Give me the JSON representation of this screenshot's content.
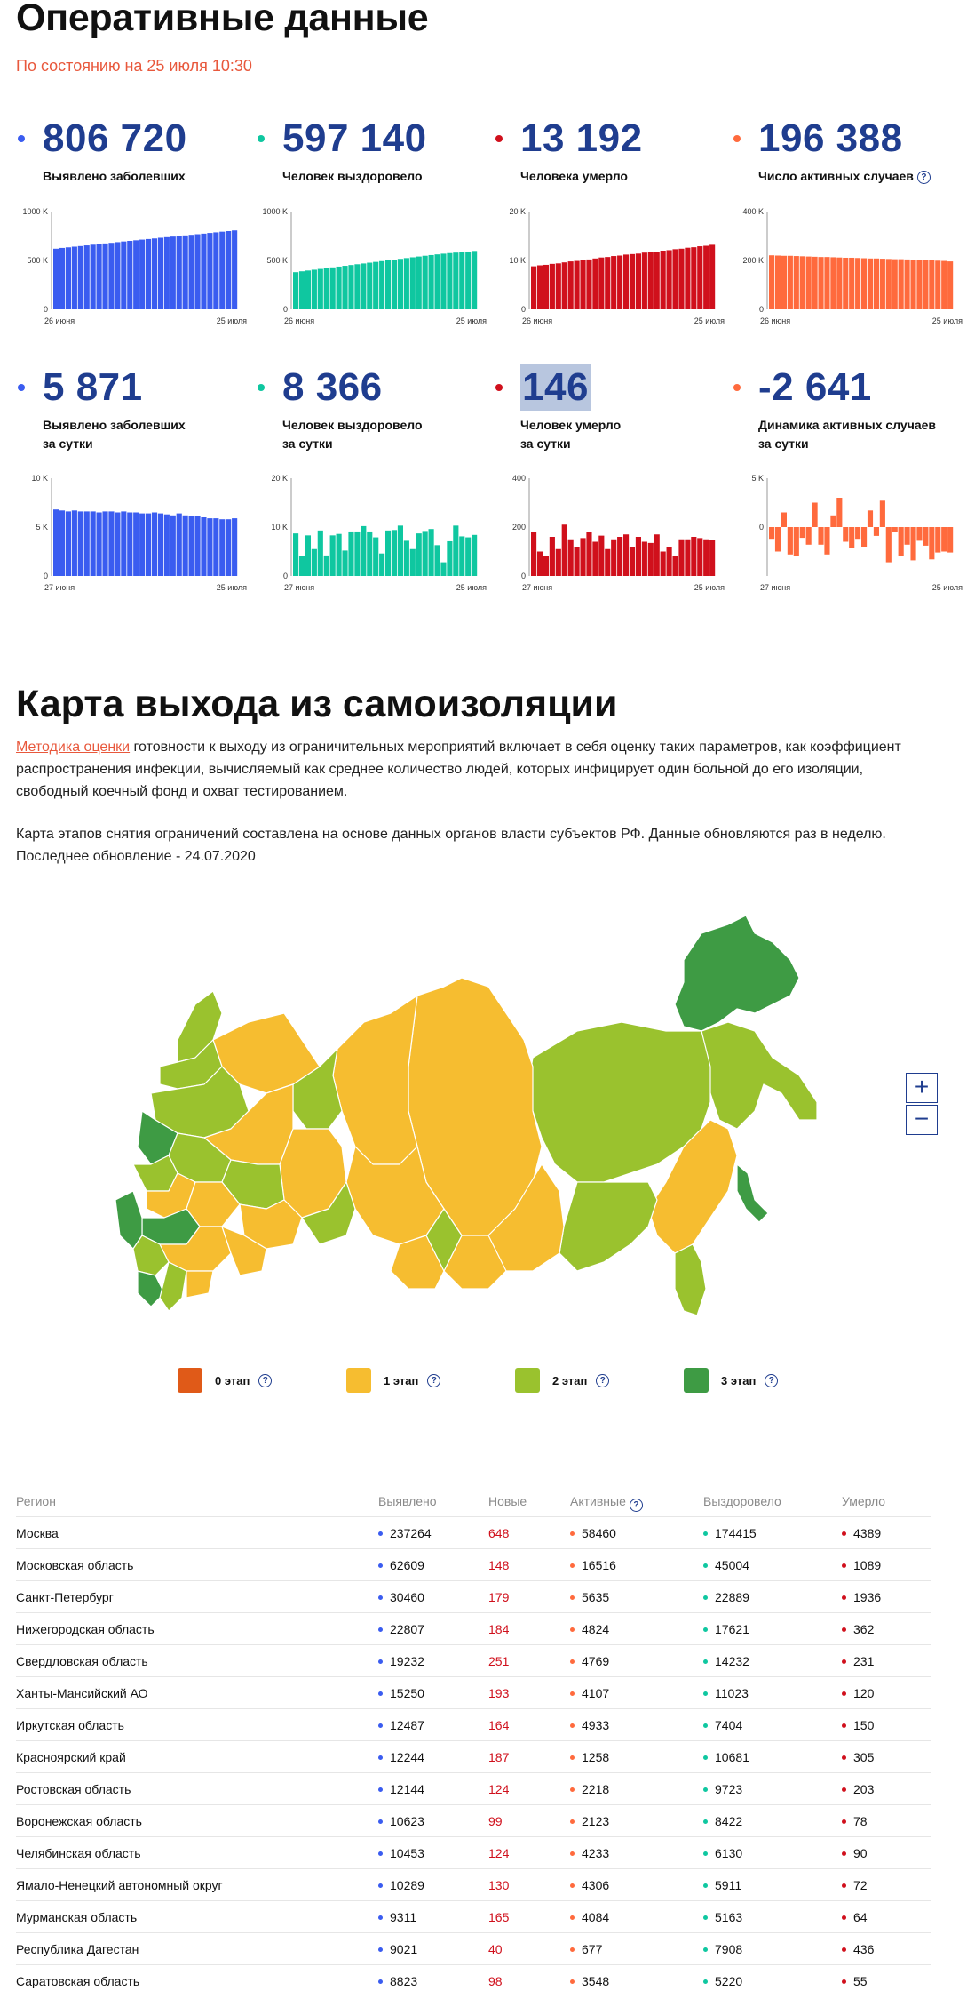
{
  "header": {
    "title": "Оперативные данные",
    "status_date": "По состоянию на 25 июля 10:30"
  },
  "colors": {
    "infected": "#3a5cf0",
    "recovered": "#0fc7a0",
    "deaths": "#d0101c",
    "active": "#ff6a3d",
    "stage0": "#e05a18",
    "stage1": "#f6bd30",
    "stage2": "#9ac22e",
    "stage3": "#3e9b44"
  },
  "stats": [
    {
      "value": "806 720",
      "label": "Выявлено заболевших",
      "color": "infected",
      "chart": {
        "type": "bar",
        "ymax": 1000,
        "ticks": [
          "1000 K",
          "500 K",
          "0"
        ],
        "ticks_v": [
          1000,
          500,
          0
        ],
        "x_start": "26 июня",
        "x_end": "25 июля",
        "values": [
          620,
          628,
          634,
          641,
          647,
          654,
          661,
          667,
          674,
          680,
          687,
          694,
          700,
          706,
          713,
          719,
          725,
          732,
          738,
          744,
          750,
          756,
          762,
          768,
          774,
          781,
          787,
          794,
          800,
          807
        ]
      }
    },
    {
      "value": "597 140",
      "label": "Человек выздоровело",
      "color": "recovered",
      "chart": {
        "type": "bar",
        "ymax": 1000,
        "ticks": [
          "1000 K",
          "500 K",
          "0"
        ],
        "ticks_v": [
          1000,
          500,
          0
        ],
        "x_start": "26 июня",
        "x_end": "25 июля",
        "values": [
          380,
          389,
          397,
          405,
          413,
          421,
          429,
          437,
          445,
          453,
          461,
          469,
          477,
          485,
          493,
          500,
          508,
          516,
          524,
          532,
          540,
          548,
          555,
          562,
          569,
          575,
          580,
          585,
          591,
          597
        ]
      }
    },
    {
      "value": "13 192",
      "label": "Человека умерло",
      "color": "deaths",
      "chart": {
        "type": "bar",
        "ymax": 20,
        "ticks": [
          "20 K",
          "10 K",
          "0"
        ],
        "ticks_v": [
          20,
          10,
          0
        ],
        "x_start": "26 июня",
        "x_end": "25 июля",
        "values": [
          8.8,
          9,
          9.1,
          9.3,
          9.4,
          9.6,
          9.8,
          9.9,
          10.1,
          10.2,
          10.4,
          10.6,
          10.7,
          10.9,
          11,
          11.2,
          11.3,
          11.4,
          11.6,
          11.7,
          11.8,
          12,
          12.1,
          12.3,
          12.4,
          12.6,
          12.7,
          12.9,
          13,
          13.2
        ]
      }
    },
    {
      "value": "196 388",
      "label": "Число активных случаев",
      "help": true,
      "color": "active",
      "chart": {
        "type": "bar",
        "ymax": 400,
        "ticks": [
          "400 K",
          "200 K",
          "0"
        ],
        "ticks_v": [
          400,
          200,
          0
        ],
        "x_start": "26 июня",
        "x_end": "25 июля",
        "values": [
          221,
          220,
          219,
          219,
          218,
          217,
          216,
          215,
          214,
          214,
          213,
          212,
          211,
          211,
          210,
          209,
          208,
          208,
          207,
          206,
          205,
          205,
          204,
          203,
          202,
          201,
          200,
          199,
          198,
          196
        ]
      }
    },
    {
      "value": "5 871",
      "label": "Выявлено заболевших\nза сутки",
      "color": "infected",
      "chart": {
        "type": "bar",
        "ymax": 10,
        "ymin": 0,
        "ticks": [
          "10 K",
          "5 K",
          "0"
        ],
        "ticks_v": [
          10,
          5,
          0
        ],
        "x_start": "27 июня",
        "x_end": "25 июля",
        "values": [
          6.8,
          6.7,
          6.6,
          6.7,
          6.6,
          6.6,
          6.6,
          6.5,
          6.6,
          6.6,
          6.5,
          6.6,
          6.5,
          6.5,
          6.4,
          6.4,
          6.5,
          6.4,
          6.3,
          6.2,
          6.4,
          6.2,
          6.1,
          6.1,
          6.0,
          5.9,
          5.9,
          5.8,
          5.8,
          5.9
        ]
      }
    },
    {
      "value": "8 366",
      "label": "Человек выздоровело\nза сутки",
      "color": "recovered",
      "chart": {
        "type": "bar",
        "ymax": 20,
        "ymin": 0,
        "ticks": [
          "20 K",
          "10 K",
          "0"
        ],
        "ticks_v": [
          20,
          10,
          0
        ],
        "x_start": "27 июня",
        "x_end": "25 июля",
        "values": [
          8.7,
          4.1,
          8.3,
          5.5,
          9.3,
          4.2,
          8.3,
          8.6,
          5.2,
          9.1,
          9.1,
          10.2,
          9.1,
          7.9,
          4.6,
          9.3,
          9.4,
          10.3,
          7.2,
          5.5,
          8.7,
          9.2,
          9.6,
          6.3,
          2.8,
          7.1,
          10.3,
          8.1,
          7.9,
          8.4
        ]
      }
    },
    {
      "value": "146",
      "label": "Человек умерло\nза сутки",
      "color": "deaths",
      "highlight": true,
      "chart": {
        "type": "bar",
        "ymax": 400,
        "ymin": 0,
        "ticks": [
          "400",
          "200",
          "0"
        ],
        "ticks_v": [
          400,
          200,
          0
        ],
        "x_start": "27 июня",
        "x_end": "25 июля",
        "values": [
          180,
          100,
          80,
          160,
          110,
          210,
          150,
          120,
          155,
          180,
          140,
          165,
          110,
          150,
          160,
          170,
          120,
          160,
          140,
          135,
          170,
          100,
          120,
          80,
          150,
          150,
          160,
          155,
          150,
          146
        ]
      }
    },
    {
      "value": "-2 641",
      "label": "Динамика активных случаев\nза сутки",
      "color": "active",
      "chart": {
        "type": "bar",
        "ymax": 5,
        "ymin": -5,
        "ticks": [
          "5 K",
          "0"
        ],
        "ticks_v": [
          5,
          0
        ],
        "x_start": "27 июня",
        "x_end": "25 июля",
        "values": [
          -1.2,
          -2.5,
          1.5,
          -2.8,
          -3,
          -1.1,
          -1.8,
          2.5,
          -1.8,
          -2.8,
          1.2,
          3,
          -1.5,
          -2.1,
          -1.2,
          -2,
          1.7,
          -0.9,
          2.7,
          -3.6,
          -0.5,
          -3,
          -1.8,
          -3.4,
          -1.4,
          -1.9,
          -3.3,
          -2.6,
          -2.5,
          -2.6
        ]
      }
    }
  ],
  "map_section": {
    "title": "Карта выхода из самоизоляции",
    "methodology_link": "Методика оценки",
    "para1_rest": " готовности к выходу из ограничительных мероприятий включает в себя оценку таких параметров, как коэффициент распространения инфекции, вычисляемый как среднее количество людей, которых инфицирует один больной до его изоляции, свободный коечный фонд и охват тестированием.",
    "para2": "Карта этапов снятия ограничений составлена на основе данных органов власти субъектов РФ. Данные обновляются раз в неделю. Последнее обновление - 24.07.2020",
    "zoom_in": "+",
    "zoom_out": "−"
  },
  "legend": [
    {
      "label": "0 этап",
      "color": "stage0"
    },
    {
      "label": "1 этап",
      "color": "stage1"
    },
    {
      "label": "2 этап",
      "color": "stage2"
    },
    {
      "label": "3 этап",
      "color": "stage3"
    }
  ],
  "table": {
    "headers": {
      "region": "Регион",
      "detected": "Выявлено",
      "new": "Новые",
      "active": "Активные",
      "recovered": "Выздоровело",
      "deaths": "Умерло"
    },
    "rows": [
      {
        "region": "Москва",
        "detected": "237264",
        "new": "648",
        "active": "58460",
        "recovered": "174415",
        "deaths": "4389"
      },
      {
        "region": "Московская область",
        "detected": "62609",
        "new": "148",
        "active": "16516",
        "recovered": "45004",
        "deaths": "1089"
      },
      {
        "region": "Санкт-Петербург",
        "detected": "30460",
        "new": "179",
        "active": "5635",
        "recovered": "22889",
        "deaths": "1936"
      },
      {
        "region": "Нижегородская область",
        "detected": "22807",
        "new": "184",
        "active": "4824",
        "recovered": "17621",
        "deaths": "362"
      },
      {
        "region": "Свердловская область",
        "detected": "19232",
        "new": "251",
        "active": "4769",
        "recovered": "14232",
        "deaths": "231"
      },
      {
        "region": "Ханты-Мансийский АО",
        "detected": "15250",
        "new": "193",
        "active": "4107",
        "recovered": "11023",
        "deaths": "120"
      },
      {
        "region": "Иркутская область",
        "detected": "12487",
        "new": "164",
        "active": "4933",
        "recovered": "7404",
        "deaths": "150"
      },
      {
        "region": "Красноярский край",
        "detected": "12244",
        "new": "187",
        "active": "1258",
        "recovered": "10681",
        "deaths": "305"
      },
      {
        "region": "Ростовская область",
        "detected": "12144",
        "new": "124",
        "active": "2218",
        "recovered": "9723",
        "deaths": "203"
      },
      {
        "region": "Воронежская область",
        "detected": "10623",
        "new": "99",
        "active": "2123",
        "recovered": "8422",
        "deaths": "78"
      },
      {
        "region": "Челябинская область",
        "detected": "10453",
        "new": "124",
        "active": "4233",
        "recovered": "6130",
        "deaths": "90"
      },
      {
        "region": "Ямало-Ненецкий автономный округ",
        "detected": "10289",
        "new": "130",
        "active": "4306",
        "recovered": "5911",
        "deaths": "72"
      },
      {
        "region": "Мурманская область",
        "detected": "9311",
        "new": "165",
        "active": "4084",
        "recovered": "5163",
        "deaths": "64"
      },
      {
        "region": "Республика Дагестан",
        "detected": "9021",
        "new": "40",
        "active": "677",
        "recovered": "7908",
        "deaths": "436"
      },
      {
        "region": "Саратовская область",
        "detected": "8823",
        "new": "98",
        "active": "3548",
        "recovered": "5220",
        "deaths": "55"
      }
    ]
  }
}
